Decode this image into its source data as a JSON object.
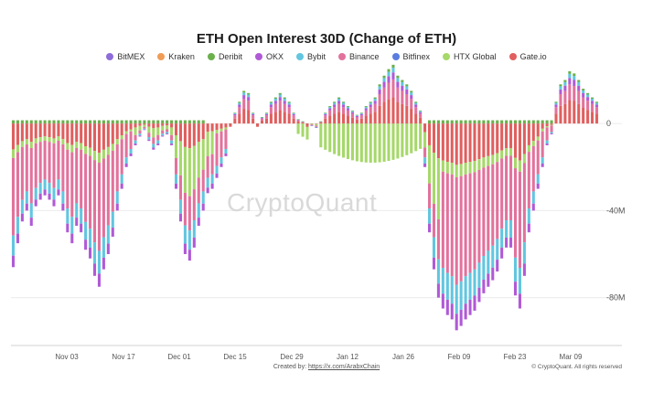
{
  "chart_data": {
    "type": "bar",
    "stacked": true,
    "title": "ETH Open Interest 30D (Change of ETH)",
    "series": [
      {
        "name": "BitMEX",
        "color": "#8e6cd9"
      },
      {
        "name": "Kraken",
        "color": "#ef9c57"
      },
      {
        "name": "Deribit",
        "color": "#6ab04c"
      },
      {
        "name": "OKX",
        "color": "#b05ad6"
      },
      {
        "name": "Bybit",
        "color": "#62c6e0"
      },
      {
        "name": "Binance",
        "color": "#e2729c"
      },
      {
        "name": "Bitfinex",
        "color": "#5b7de0"
      },
      {
        "name": "HTX Global",
        "color": "#a6d86a"
      },
      {
        "name": "Gate.io",
        "color": "#e05f5f"
      }
    ],
    "x_ticks": [
      "Nov 03",
      "Nov 17",
      "Dec 01",
      "Dec 15",
      "Dec 29",
      "Jan 12",
      "Jan 26",
      "Feb 09",
      "Feb 23",
      "Mar 09"
    ],
    "y_ticks": [
      "0",
      "-40M",
      "-80M"
    ],
    "ylim": [
      -102000000,
      24000000
    ],
    "legend_position": "top",
    "grid": "horizontal",
    "net_totals_M": [
      -66,
      -55,
      -45,
      -40,
      -47,
      -38,
      -35,
      -33,
      -35,
      -38,
      -33,
      -40,
      -50,
      -55,
      -47,
      -50,
      -58,
      -62,
      -70,
      -75,
      -67,
      -60,
      -52,
      -40,
      -30,
      -20,
      -15,
      -10,
      -6,
      -3,
      -8,
      -12,
      -10,
      -6,
      -5,
      -10,
      -30,
      -45,
      -60,
      -63,
      -57,
      -47,
      -40,
      -32,
      -30,
      -25,
      -20,
      -15,
      0,
      5,
      10,
      15,
      14,
      5,
      0,
      3,
      5,
      10,
      12,
      14,
      12,
      10,
      5,
      2,
      1,
      0,
      -1,
      -2,
      1,
      5,
      8,
      10,
      12,
      10,
      8,
      6,
      4,
      5,
      8,
      10,
      12,
      18,
      22,
      25,
      27,
      22,
      20,
      18,
      15,
      10,
      6,
      -20,
      -50,
      -67,
      -80,
      -85,
      -88,
      -90,
      -95,
      -93,
      -90,
      -88,
      -86,
      -82,
      -78,
      -75,
      -72,
      -68,
      -62,
      -57,
      -57,
      -79,
      -85,
      -70,
      -50,
      -40,
      -30,
      -20,
      -10,
      -5,
      10,
      18,
      20,
      24,
      23,
      20,
      16,
      14,
      12,
      10
    ]
  },
  "watermark": "CryptoQuant",
  "footer": {
    "credit_prefix": "Created by:",
    "credit_link": "https://x.com/ArabxChain",
    "copyright": "© CryptoQuant. All rights reserved"
  }
}
